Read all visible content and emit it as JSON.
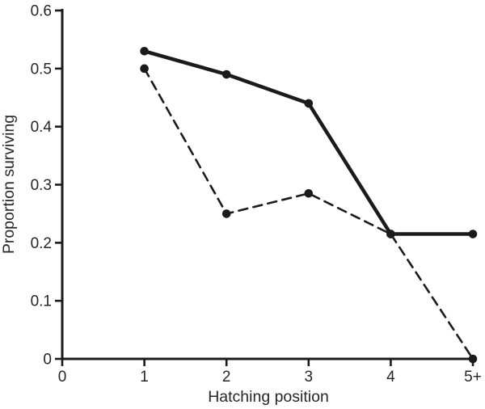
{
  "chart_data": {
    "type": "line",
    "title": "",
    "xlabel": "Hatching position",
    "ylabel": "Proportion surviving",
    "xlim": [
      0,
      5
    ],
    "ylim": [
      0,
      0.6
    ],
    "grid": false,
    "legend": "none",
    "x_tick_values": [
      0,
      1,
      2,
      3,
      4,
      5
    ],
    "x_tick_labels": [
      "0",
      "1",
      "2",
      "3",
      "4",
      "5+"
    ],
    "y_tick_values": [
      0,
      0.1,
      0.2,
      0.3,
      0.4,
      0.5,
      0.6
    ],
    "y_tick_labels": [
      "0",
      "0.1",
      "0.2",
      "0.3",
      "0.4",
      "0.5",
      "0.6"
    ],
    "series": [
      {
        "name": "solid-line-series",
        "style": "solid",
        "marker": "filled-circle",
        "x": [
          1,
          2,
          3,
          4,
          5
        ],
        "values": [
          0.53,
          0.49,
          0.44,
          0.215,
          0.215
        ]
      },
      {
        "name": "dashed-line-series",
        "style": "dashed",
        "marker": "filled-circle",
        "x": [
          1,
          2,
          3,
          4,
          5
        ],
        "values": [
          0.5,
          0.25,
          0.285,
          0.215,
          0
        ]
      }
    ],
    "colors": {
      "line": "#1b1b1b",
      "text": "#262626",
      "background": "#ffffff"
    }
  }
}
